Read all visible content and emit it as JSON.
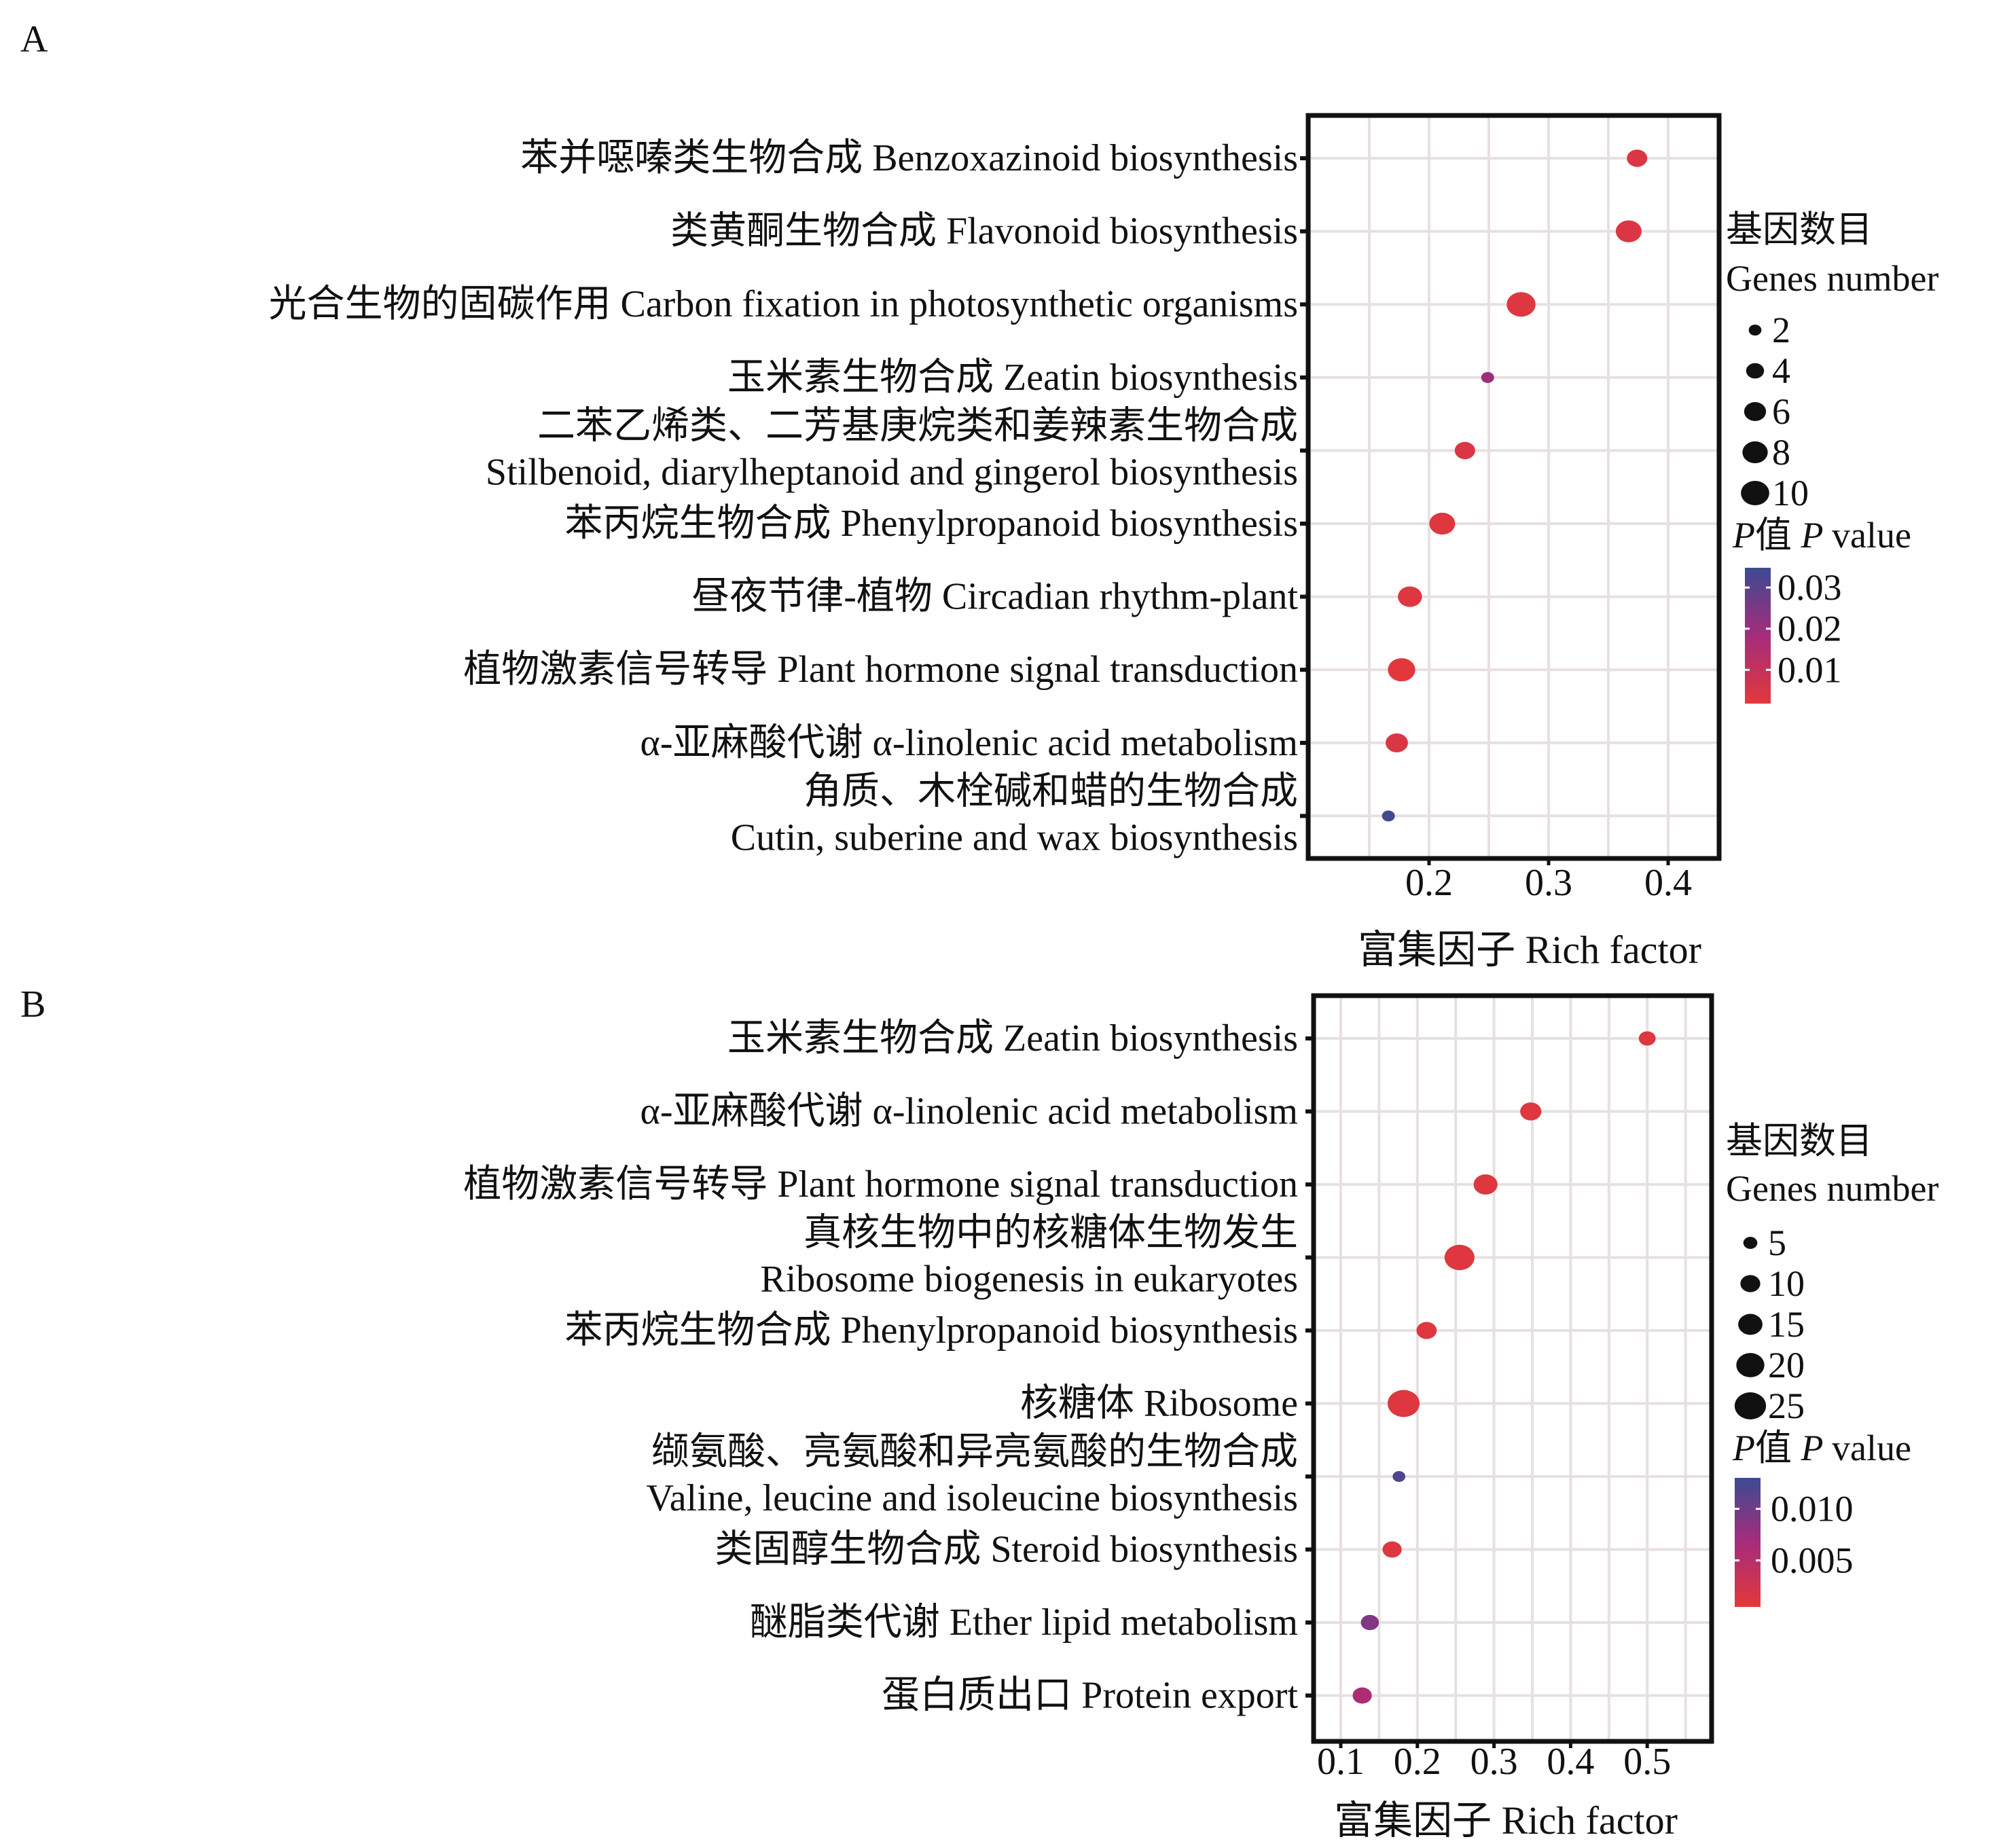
{
  "chart_data": [
    {
      "panel": "A",
      "type": "scatter",
      "xlabel": "富集因子 Rich factor",
      "xticks": [
        0.2,
        0.3,
        0.4
      ],
      "xtick_labels": [
        "0.2",
        "0.3",
        "0.4"
      ],
      "xlim": [
        0.099,
        0.443
      ],
      "grid": true,
      "categories": [
        {
          "zh": "苯并噁嗪类生物合成",
          "en": "Benzoxazinoid biosynthesis",
          "two_line": false
        },
        {
          "zh": "类黄酮生物合成",
          "en": "Flavonoid biosynthesis",
          "two_line": false
        },
        {
          "zh": "光合生物的固碳作用",
          "en": "Carbon fixation in photosynthetic organisms",
          "two_line": false
        },
        {
          "zh": "玉米素生物合成",
          "en": "Zeatin biosynthesis",
          "two_line": false
        },
        {
          "zh": "二苯乙烯类、二芳基庚烷类和姜辣素生物合成",
          "en": "Stilbenoid, diarylheptanoid and gingerol biosynthesis",
          "two_line": true
        },
        {
          "zh": "苯丙烷生物合成",
          "en": "Phenylpropanoid biosynthesis",
          "two_line": false
        },
        {
          "zh": "昼夜节律-植物",
          "en": "Circadian rhythm-plant",
          "two_line": false
        },
        {
          "zh": "植物激素信号转导",
          "en": "Plant hormone signal transduction",
          "two_line": false
        },
        {
          "zh": "α-亚麻酸代谢",
          "en": "α-linolenic acid metabolism",
          "two_line": false
        },
        {
          "zh": "角质、木栓碱和蜡的生物合成",
          "en": "Cutin, suberine and wax biosynthesis",
          "two_line": true
        }
      ],
      "rich_factor": [
        0.374,
        0.367,
        0.277,
        0.249,
        0.23,
        0.211,
        0.184,
        0.177,
        0.173,
        0.166
      ],
      "gene_number": [
        5,
        8,
        10,
        2,
        5,
        8,
        7,
        9,
        6,
        2
      ],
      "p_value": [
        0.004,
        0.004,
        0.003,
        0.02,
        0.004,
        0.003,
        0.003,
        0.002,
        0.004,
        0.034
      ],
      "size_legend": {
        "title_zh": "基因数目",
        "title_en": "Genes number",
        "values": [
          2,
          4,
          6,
          8,
          10
        ],
        "labels": [
          "2",
          "4",
          "6",
          "8",
          "10"
        ]
      },
      "color_legend": {
        "title_p": "P",
        "title_zh": "值",
        "title_en": "value",
        "labels": [
          "0.03",
          "0.02",
          "0.01"
        ],
        "ticks": [
          0.03,
          0.02,
          0.01
        ],
        "range": [
          0.0018,
          0.0348
        ]
      }
    },
    {
      "panel": "B",
      "type": "scatter",
      "xlabel": "富集因子 Rich factor",
      "xticks": [
        0.1,
        0.2,
        0.3,
        0.4,
        0.5
      ],
      "xtick_labels": [
        "0.1",
        "0.2",
        "0.3",
        "0.4",
        "0.5"
      ],
      "xlim": [
        0.065,
        0.584
      ],
      "grid": true,
      "categories": [
        {
          "zh": "玉米素生物合成",
          "en": "Zeatin biosynthesis",
          "two_line": false
        },
        {
          "zh": "α-亚麻酸代谢",
          "en": "α-linolenic acid metabolism",
          "two_line": false
        },
        {
          "zh": "植物激素信号转导",
          "en": "Plant hormone signal transduction",
          "two_line": false
        },
        {
          "zh": "真核生物中的核糖体生物发生",
          "en": "Ribosome biogenesis in eukaryotes",
          "two_line": true
        },
        {
          "zh": "苯丙烷生物合成",
          "en": "Phenylpropanoid biosynthesis",
          "two_line": false
        },
        {
          "zh": "核糖体",
          "en": "Ribosome",
          "two_line": false
        },
        {
          "zh": "缬氨酸、亮氨酸和异亮氨酸的生物合成",
          "en": "Valine, leucine and isoleucine biosynthesis",
          "two_line": true
        },
        {
          "zh": "类固醇生物合成",
          "en": "Steroid biosynthesis",
          "two_line": false
        },
        {
          "zh": "醚脂类代谢",
          "en": "Ether lipid metabolism",
          "two_line": false
        },
        {
          "zh": "蛋白质出口",
          "en": "Protein export",
          "two_line": false
        }
      ],
      "rich_factor": [
        0.5,
        0.348,
        0.289,
        0.255,
        0.212,
        0.182,
        0.176,
        0.167,
        0.138,
        0.128
      ],
      "gene_number": [
        7,
        11,
        14,
        22,
        10,
        25,
        4,
        9,
        8,
        9
      ],
      "p_value": [
        0.001,
        0.001,
        0.001,
        0.001,
        0.001,
        0.001,
        0.012,
        0.001,
        0.009,
        0.006
      ],
      "size_legend": {
        "title_zh": "基因数目",
        "title_en": "Genes number",
        "values": [
          5,
          10,
          15,
          20,
          25
        ],
        "labels": [
          "5",
          "10",
          "15",
          "20",
          "25"
        ]
      },
      "color_legend": {
        "title_p": "P",
        "title_zh": "值",
        "title_en": "value",
        "labels": [
          "0.010",
          "0.005"
        ],
        "ticks": [
          0.01,
          0.005
        ],
        "range": [
          0.0005,
          0.013
        ]
      }
    }
  ],
  "colors": {
    "low_p": "#e3383a",
    "mid_p": "#a62c7c",
    "high_p": "#3c4a92",
    "grid": "#e8e0e0",
    "frame": "#111111"
  }
}
